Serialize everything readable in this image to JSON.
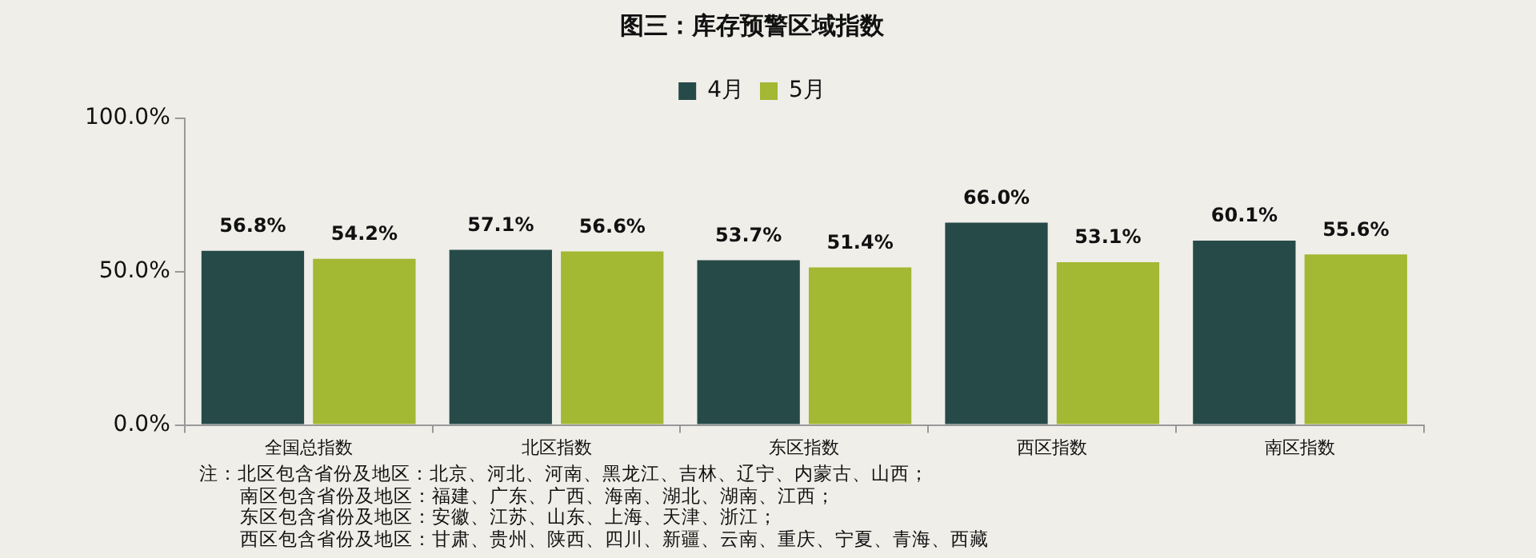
{
  "chart_data": {
    "type": "bar",
    "title": "图三：库存预警区域指数",
    "categories": [
      "全国总指数",
      "北区指数",
      "东区指数",
      "西区指数",
      "南区指数"
    ],
    "series": [
      {
        "name": "4月",
        "color": "#264a48",
        "values": [
          56.8,
          57.1,
          53.7,
          66.0,
          60.1
        ],
        "value_labels": [
          "56.8%",
          "57.1%",
          "53.7%",
          "66.0%",
          "60.1%"
        ]
      },
      {
        "name": "5月",
        "color": "#a3b833",
        "values": [
          54.2,
          56.6,
          51.4,
          53.1,
          55.6
        ],
        "value_labels": [
          "54.2%",
          "56.6%",
          "51.4%",
          "53.1%",
          "55.6%"
        ]
      }
    ],
    "ylim": [
      0,
      100
    ],
    "yticks": [
      {
        "value": 0,
        "label": "0.0%"
      },
      {
        "value": 50,
        "label": "50.0%"
      },
      {
        "value": 100,
        "label": "100.0%"
      }
    ],
    "grid": false,
    "legend": "top",
    "annotations": [
      "注：北区包含省份及地区：北京、河北、河南、黑龙江、吉林、辽宁、内蒙古、山西；",
      "南区包含省份及地区：福建、广东、广西、海南、湖北、湖南、江西；",
      "东区包含省份及地区：安徽、江苏、山东、上海、天津、浙江；",
      "西区包含省份及地区：甘肃、贵州、陕西、四川、新疆、云南、重庆、宁夏、青海、西藏"
    ]
  }
}
